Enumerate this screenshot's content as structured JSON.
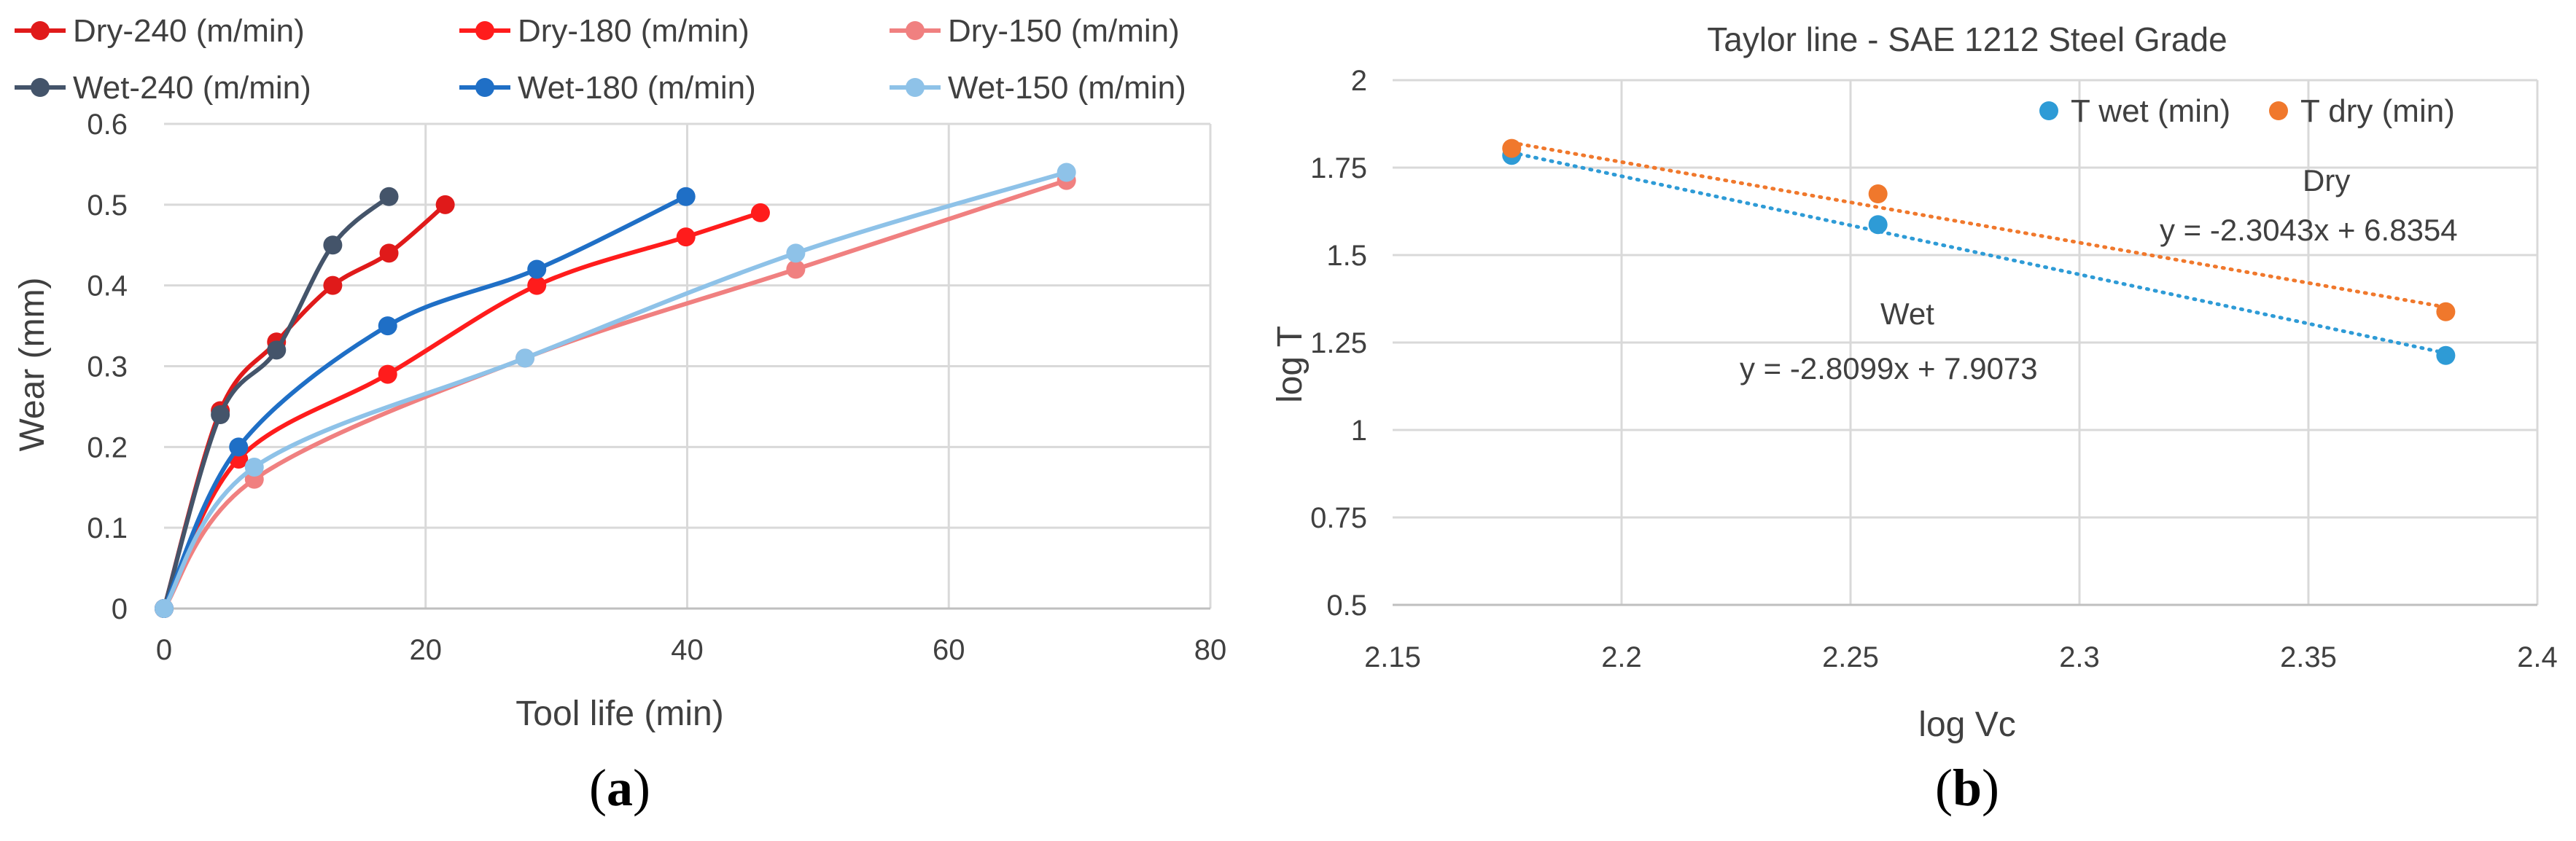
{
  "chart_data": [
    {
      "type": "line",
      "panel_label": "(a)",
      "panel_letter": "a",
      "xlabel": "Tool life (min)",
      "ylabel": "Wear (mm)",
      "xlim": [
        0,
        80
      ],
      "ylim": [
        0,
        0.6
      ],
      "x_ticks": [
        0,
        20,
        40,
        60,
        80
      ],
      "x_tick_labels": [
        "0",
        "20",
        "40",
        "60",
        "80"
      ],
      "y_ticks": [
        0,
        0.1,
        0.2,
        0.3,
        0.4,
        0.5,
        0.6
      ],
      "y_tick_labels": [
        "0",
        "0.1",
        "0.2",
        "0.3",
        "0.4",
        "0.5",
        "0.6"
      ],
      "grid": true,
      "legend_position": "top",
      "series": [
        {
          "name": "Dry-240 (m/min)",
          "color": "#e01a1a",
          "x": [
            0,
            4.3,
            8.6,
            12.9,
            17.2,
            21.5
          ],
          "y": [
            0,
            0.245,
            0.33,
            0.4,
            0.44,
            0.5
          ]
        },
        {
          "name": "Dry-180 (m/min)",
          "color": "#ff1c1c",
          "x": [
            0,
            5.7,
            17.1,
            28.5,
            39.9,
            45.6
          ],
          "y": [
            0,
            0.185,
            0.29,
            0.4,
            0.46,
            0.49
          ]
        },
        {
          "name": "Dry-150 (m/min)",
          "color": "#f08080",
          "x": [
            0,
            6.9,
            27.6,
            48.3,
            69.0
          ],
          "y": [
            0,
            0.16,
            0.31,
            0.42,
            0.53
          ]
        },
        {
          "name": "Wet-240 (m/min)",
          "color": "#44546a",
          "x": [
            0,
            4.3,
            8.6,
            12.9,
            17.2
          ],
          "y": [
            0,
            0.24,
            0.32,
            0.45,
            0.51
          ]
        },
        {
          "name": "Wet-180 (m/min)",
          "color": "#1f6fc6",
          "x": [
            0,
            5.7,
            17.1,
            28.5,
            39.9
          ],
          "y": [
            0,
            0.2,
            0.35,
            0.42,
            0.51
          ]
        },
        {
          "name": "Wet-150 (m/min)",
          "color": "#8ec2e8",
          "x": [
            0,
            6.9,
            27.6,
            48.3,
            69.0
          ],
          "y": [
            0,
            0.175,
            0.31,
            0.44,
            0.54
          ]
        }
      ]
    },
    {
      "type": "scatter",
      "panel_label": "(b)",
      "panel_letter": "b",
      "title": "Taylor line - SAE 1212 Steel Grade",
      "xlabel": "log Vc",
      "ylabel": "log T",
      "xlim": [
        2.15,
        2.4
      ],
      "ylim": [
        0.5,
        2
      ],
      "x_ticks": [
        2.15,
        2.2,
        2.25,
        2.3,
        2.35,
        2.4
      ],
      "x_tick_labels": [
        "2.15",
        "2.2",
        "2.25",
        "2.3",
        "2.35",
        "2.4"
      ],
      "y_ticks": [
        0.5,
        0.75,
        1,
        1.25,
        1.5,
        1.75,
        2
      ],
      "y_tick_labels": [
        "0.5",
        "0.75",
        "1",
        "1.25",
        "1.5",
        "1.75",
        "2"
      ],
      "grid": true,
      "legend_position": "top-right",
      "series": [
        {
          "name": "T wet (min)",
          "color": "#2e9bd6",
          "x": [
            2.176,
            2.256,
            2.38
          ],
          "y": [
            1.785,
            1.587,
            1.213
          ],
          "trendline": {
            "slope": -2.8099,
            "intercept": 7.9073
          }
        },
        {
          "name": "T dry (min)",
          "color": "#f0782c",
          "x": [
            2.176,
            2.256,
            2.38
          ],
          "y": [
            1.805,
            1.675,
            1.338
          ],
          "trendline": {
            "slope": -2.3043,
            "intercept": 6.8354
          }
        }
      ],
      "annotations": [
        {
          "id": "dry-label",
          "text": "Dry"
        },
        {
          "id": "dry-equation",
          "text": "y = -2.3043x + 6.8354"
        },
        {
          "id": "wet-label",
          "text": "Wet"
        },
        {
          "id": "wet-equation",
          "text": "y = -2.8099x + 7.9073"
        }
      ]
    }
  ]
}
